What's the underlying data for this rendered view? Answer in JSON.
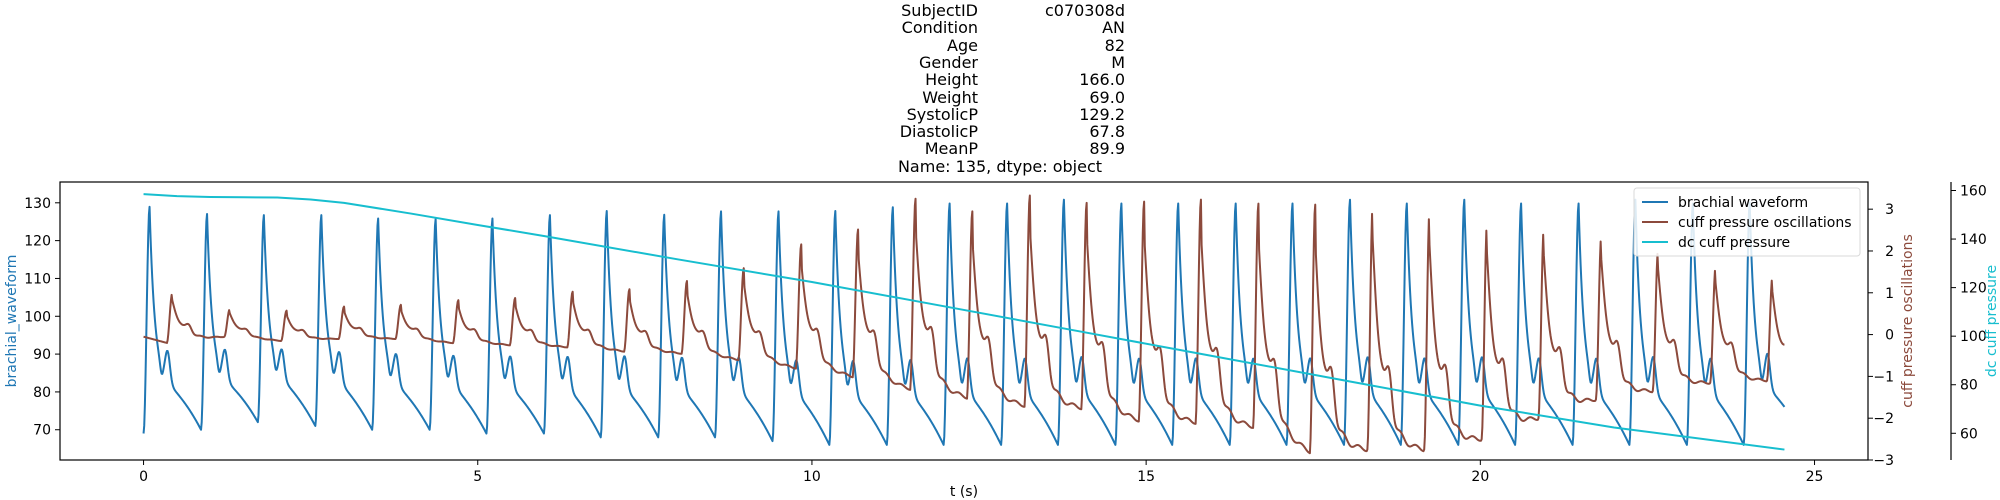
{
  "title": {
    "rows": [
      {
        "key": "SubjectID",
        "value": "c070308d"
      },
      {
        "key": "Condition",
        "value": "AN"
      },
      {
        "key": "Age",
        "value": "82"
      },
      {
        "key": "Gender",
        "value": "M"
      },
      {
        "key": "Height",
        "value": "166.0"
      },
      {
        "key": "Weight",
        "value": "69.0"
      },
      {
        "key": "SystolicP",
        "value": "129.2"
      },
      {
        "key": "DiastolicP",
        "value": "67.8"
      },
      {
        "key": "MeanP",
        "value": "89.9"
      }
    ],
    "footer": "Name: 135, dtype: object"
  },
  "chart_data": {
    "type": "line",
    "xlabel": "t (s)",
    "xlim": [
      -1.25,
      25.8
    ],
    "x_ticks": [
      0,
      5,
      10,
      15,
      20,
      25
    ],
    "legend_position": "upper-right",
    "grid": false,
    "axes": {
      "left": {
        "label": "brachial_waveform",
        "color": "#1f77b4",
        "ylim": [
          62,
          135.5
        ],
        "ticks": [
          70,
          80,
          90,
          100,
          110,
          120,
          130
        ]
      },
      "right": {
        "label": "cuff pressure oscillations",
        "color": "#8c4a3c",
        "ylim": [
          -3,
          3.65
        ],
        "ticks": [
          -3,
          -2,
          -1,
          0,
          1,
          2,
          3
        ]
      },
      "right2": {
        "label": "dc cuff pressure",
        "color": "#17becf",
        "ylim": [
          49,
          163.5
        ],
        "ticks": [
          60,
          80,
          100,
          120,
          140,
          160
        ]
      }
    },
    "series": [
      {
        "name": "brachial waveform",
        "axis": "left",
        "color": "#1f77b4",
        "signal": "periodic_pulse",
        "beat_times": [
          0.0,
          0.86,
          1.71,
          2.57,
          3.42,
          4.28,
          5.13,
          5.99,
          6.84,
          7.7,
          8.55,
          9.41,
          10.26,
          11.12,
          11.97,
          12.83,
          13.68,
          14.54,
          15.39,
          16.25,
          17.1,
          17.96,
          18.81,
          19.67,
          20.52,
          21.38,
          22.23,
          23.09,
          23.94
        ],
        "systolic_peaks": [
          129,
          127,
          127,
          127,
          126,
          126,
          126,
          127,
          128,
          127,
          128,
          128,
          128,
          129,
          130,
          130,
          131,
          130,
          130,
          130,
          130,
          131,
          130,
          131,
          130,
          130,
          131,
          130,
          130
        ],
        "diastolic_troughs": [
          69,
          70,
          72,
          71,
          70,
          70,
          69,
          69,
          68,
          68,
          68,
          67,
          66,
          66,
          66,
          66,
          66,
          66,
          66,
          66,
          66,
          66,
          66,
          66,
          66,
          66,
          66,
          66,
          66
        ],
        "end": [
          24.55,
          69
        ]
      },
      {
        "name": "cuff pressure oscillations",
        "axis": "right",
        "color": "#8c4a3c",
        "signal": "periodic_oscillation",
        "beat_times": [
          0.35,
          1.21,
          2.06,
          2.92,
          3.77,
          4.63,
          5.48,
          6.34,
          7.19,
          8.05,
          8.9,
          9.76,
          10.61,
          11.47,
          12.32,
          13.18,
          14.03,
          14.89,
          15.74,
          16.6,
          17.45,
          18.31,
          19.16,
          20.02,
          20.87,
          21.73,
          22.58,
          23.44,
          24.29
        ],
        "peaks": [
          0.95,
          0.6,
          0.55,
          0.65,
          0.7,
          0.8,
          0.85,
          1.0,
          1.05,
          1.25,
          1.55,
          2.1,
          2.45,
          3.15,
          2.85,
          3.2,
          3.05,
          3.05,
          3.1,
          3.05,
          2.95,
          2.95,
          2.8,
          2.5,
          2.4,
          2.25,
          1.95,
          1.55,
          1.3
        ],
        "troughs": [
          -0.2,
          -0.05,
          -0.15,
          -0.1,
          -0.1,
          -0.2,
          -0.25,
          -0.3,
          -0.4,
          -0.45,
          -0.6,
          -0.8,
          -1.0,
          -1.3,
          -1.5,
          -1.7,
          -1.75,
          -2.05,
          -2.1,
          -2.2,
          -2.8,
          -2.75,
          -2.75,
          -2.5,
          -2.0,
          -1.55,
          -1.35,
          -1.15,
          -1.1
        ],
        "start": [
          0.0,
          -0.05
        ],
        "end": [
          24.55,
          -0.9
        ]
      },
      {
        "name": "dc cuff pressure",
        "axis": "right2",
        "color": "#17becf",
        "x": [
          0,
          0.5,
          1.0,
          1.5,
          2.0,
          2.5,
          3.0,
          4.0,
          5.0,
          6.0,
          8.0,
          10.0,
          12.0,
          14.0,
          16.0,
          18.0,
          20.0,
          22.0,
          24.55
        ],
        "y": [
          158.5,
          157.7,
          157.3,
          157.2,
          157.1,
          156.3,
          154.9,
          150.5,
          145.8,
          141.2,
          131.6,
          122.3,
          112.2,
          102.0,
          91.8,
          81.6,
          71.4,
          62.4,
          53.3
        ]
      }
    ]
  }
}
